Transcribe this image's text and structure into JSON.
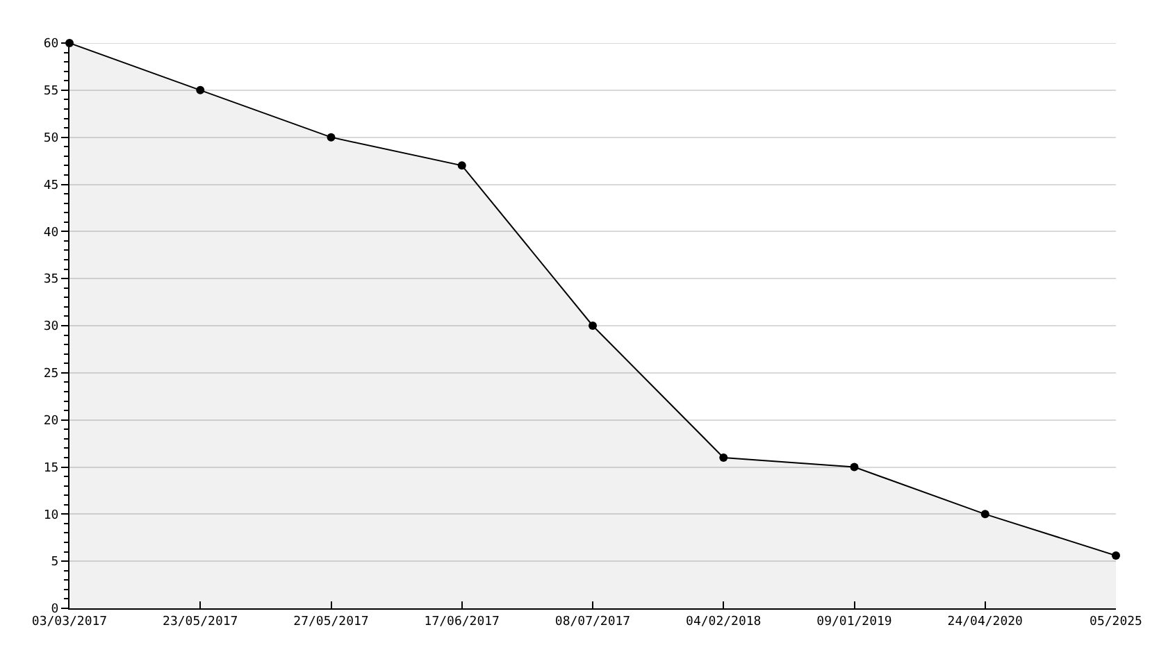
{
  "chart_data": {
    "type": "area",
    "categories": [
      "03/03/2017",
      "23/05/2017",
      "27/05/2017",
      "17/06/2017",
      "08/07/2017",
      "04/02/2018",
      "09/01/2019",
      "24/04/2020",
      "05/2025"
    ],
    "series": [
      {
        "color": "#000000",
        "values": [
          60,
          55,
          50,
          47,
          30,
          16,
          15,
          10,
          5.6
        ]
      }
    ],
    "ylim": [
      0,
      60
    ],
    "yticks": [
      0,
      5,
      10,
      15,
      20,
      25,
      30,
      35,
      40,
      45,
      50,
      55,
      60
    ],
    "grid": "y",
    "marker": "circle",
    "line_style": "solid"
  }
}
